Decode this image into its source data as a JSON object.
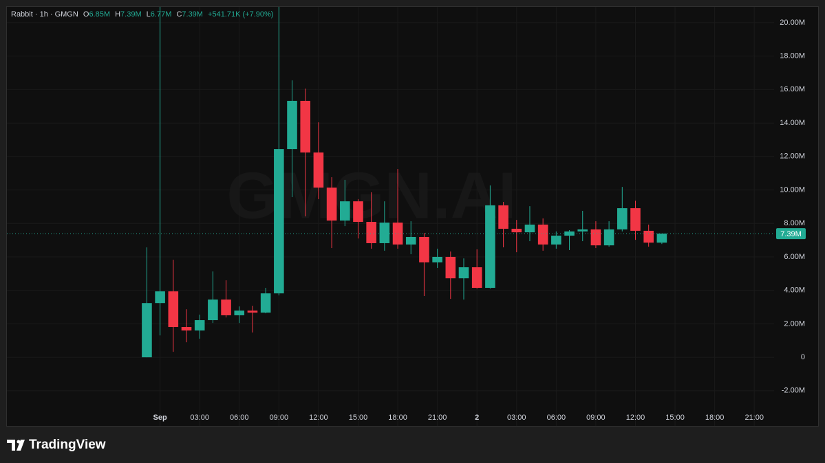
{
  "chart_data": {
    "type": "candlestick",
    "title": "Rabbit · 1h · GMGN",
    "header": {
      "open_key": "O",
      "open": "6.85M",
      "high_key": "H",
      "high": "7.39M",
      "low_key": "L",
      "low": "6.77M",
      "close_key": "C",
      "close": "7.39M",
      "change": "+541.71K (+7.90%)"
    },
    "watermark": "GMGN.AI",
    "branding": "TradingView",
    "up_color": "#22ab94",
    "down_color": "#f23645",
    "grid": true,
    "x": [
      -1,
      0,
      1,
      2,
      3,
      4,
      5,
      6,
      7,
      8,
      9,
      10,
      11,
      12,
      13,
      14,
      15,
      16,
      17,
      18,
      19,
      20,
      21,
      22,
      23,
      24,
      25,
      26,
      27,
      28,
      29,
      30,
      31,
      32,
      33,
      34,
      35,
      36,
      37,
      38
    ],
    "open": [
      0,
      3240000,
      3940000,
      1810000,
      1600000,
      2220000,
      3450000,
      2510000,
      2790000,
      2670000,
      3820000,
      12440000,
      15320000,
      12240000,
      10140000,
      8170000,
      9320000,
      8090000,
      6820000,
      8050000,
      6740000,
      7190000,
      5670000,
      6000000,
      4720000,
      5380000,
      4150000,
      9080000,
      7680000,
      7470000,
      7930000,
      6740000,
      7270000,
      7520000,
      7640000,
      6690000,
      7640000,
      8910000,
      7560000,
      6850000
    ],
    "high": [
      6570000,
      21000000,
      5830000,
      2870000,
      2550000,
      5130000,
      4600000,
      3040000,
      3080000,
      4150000,
      21000000,
      16550000,
      16060000,
      14040000,
      10760000,
      10600000,
      9450000,
      9860000,
      9320000,
      11250000,
      8130000,
      7430000,
      6490000,
      6320000,
      5910000,
      6450000,
      10270000,
      9280000,
      8210000,
      9030000,
      8300000,
      7520000,
      7600000,
      8750000,
      8130000,
      8130000,
      10180000,
      9360000,
      7930000,
      7390000
    ],
    "low": [
      0,
      1310000,
      330000,
      900000,
      1110000,
      2050000,
      2380000,
      2050000,
      1480000,
      2630000,
      3700000,
      9570000,
      8420000,
      9450000,
      6530000,
      7840000,
      7100000,
      6490000,
      6370000,
      6490000,
      6160000,
      3660000,
      5340000,
      3490000,
      3450000,
      4110000,
      4110000,
      6570000,
      6280000,
      6940000,
      6370000,
      6490000,
      6410000,
      6940000,
      6530000,
      6610000,
      7520000,
      7020000,
      6610000,
      6770000
    ],
    "close": [
      3240000,
      3940000,
      1810000,
      1600000,
      2220000,
      3450000,
      2510000,
      2790000,
      2670000,
      3820000,
      12440000,
      15320000,
      12240000,
      10140000,
      8170000,
      9320000,
      8090000,
      6820000,
      8050000,
      6740000,
      7190000,
      5670000,
      6000000,
      4720000,
      5380000,
      4150000,
      9080000,
      7680000,
      7470000,
      7930000,
      6740000,
      7270000,
      7520000,
      7640000,
      6690000,
      7640000,
      8910000,
      7560000,
      6850000,
      7390000
    ],
    "xlim": [
      -11.6,
      46.5
    ],
    "xticks": [
      {
        "value": 0,
        "label": "Sep"
      },
      {
        "value": 3,
        "label": "03:00"
      },
      {
        "value": 6,
        "label": "06:00"
      },
      {
        "value": 9,
        "label": "09:00"
      },
      {
        "value": 12,
        "label": "12:00"
      },
      {
        "value": 15,
        "label": "15:00"
      },
      {
        "value": 18,
        "label": "18:00"
      },
      {
        "value": 21,
        "label": "21:00"
      },
      {
        "value": 24,
        "label": "2"
      },
      {
        "value": 27,
        "label": "03:00"
      },
      {
        "value": 30,
        "label": "06:00"
      },
      {
        "value": 33,
        "label": "09:00"
      },
      {
        "value": 36,
        "label": "12:00"
      },
      {
        "value": 39,
        "label": "15:00"
      },
      {
        "value": 42,
        "label": "18:00"
      },
      {
        "value": 45,
        "label": "21:00"
      }
    ],
    "ylim": [
      -4100000,
      20940000
    ],
    "yticks": [
      {
        "value": -2000000,
        "label": "-2.00M"
      },
      0,
      {
        "value": 2000000,
        "label": "2.00M"
      },
      {
        "value": 4000000,
        "label": "4.00M"
      },
      {
        "value": 6000000,
        "label": "6.00M"
      },
      {
        "value": 8000000,
        "label": "8.00M"
      },
      {
        "value": 10000000,
        "label": "10.00M"
      },
      {
        "value": 12000000,
        "label": "12.00M"
      },
      {
        "value": 14000000,
        "label": "14.00M"
      },
      {
        "value": 16000000,
        "label": "16.00M"
      },
      {
        "value": 18000000,
        "label": "18.00M"
      },
      {
        "value": 20000000,
        "label": "20.00M"
      }
    ],
    "last_price": {
      "value": 7390000,
      "label": "7.39M"
    }
  }
}
